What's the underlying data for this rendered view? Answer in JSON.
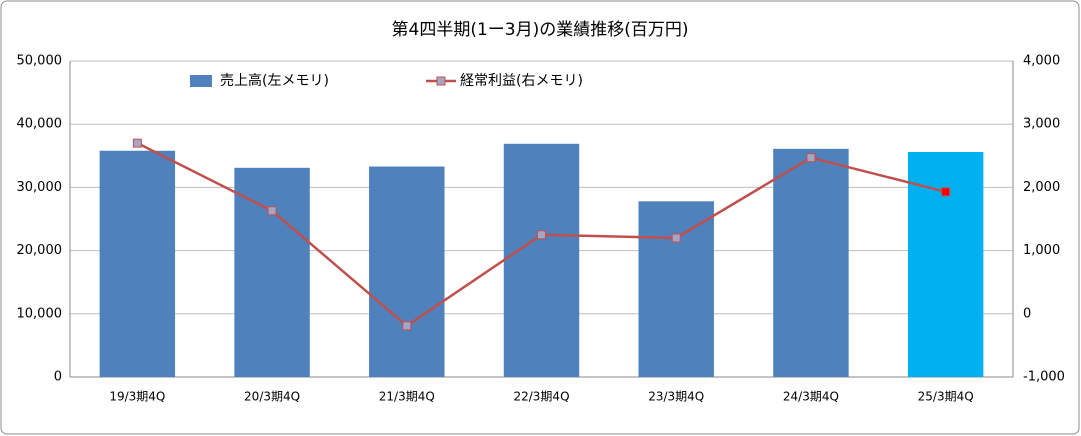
{
  "chart_data": {
    "type": "bar-line",
    "title": "第4四半期(1ー3月)の業績推移(百万円)",
    "categories": [
      "19/3期4Q",
      "20/3期4Q",
      "21/3期4Q",
      "22/3期4Q",
      "23/3期4Q",
      "24/3期4Q",
      "25/3期4Q"
    ],
    "series": [
      {
        "name": "売上高(左メモリ)",
        "type": "bar",
        "color": "#4f81bd",
        "colors": [
          "#4f81bd",
          "#4f81bd",
          "#4f81bd",
          "#4f81bd",
          "#4f81bd",
          "#4f81bd",
          "#00b0f0"
        ],
        "values": [
          35800,
          33100,
          33300,
          36900,
          27800,
          36100,
          35600
        ]
      },
      {
        "name": "経常利益(右メモリ)",
        "type": "line",
        "axis": "y2",
        "color": "#c0504d",
        "marker_color": "#a5a5c8",
        "marker_colors": [
          "#a5a5c8",
          "#a5a5c8",
          "#a5a5c8",
          "#a5a5c8",
          "#a5a5c8",
          "#a5a5c8",
          "#ff0000"
        ],
        "values": [
          2700,
          1630,
          -190,
          1250,
          1200,
          2470,
          1930
        ]
      }
    ],
    "ylim": [
      0,
      50000
    ],
    "yticks": [
      0,
      {
        "value": 10000,
        "label": "10,000"
      },
      {
        "value": 20000,
        "label": "20,000"
      },
      {
        "value": 30000,
        "label": "30,000"
      },
      {
        "value": 40000,
        "label": "40,000"
      },
      {
        "value": 50000,
        "label": "50,000"
      }
    ],
    "y2lim": [
      -1000,
      4000
    ],
    "y2ticks": [
      {
        "value": -1000,
        "label": "-1,000"
      },
      0,
      {
        "value": 1000,
        "label": "1,000"
      },
      {
        "value": 2000,
        "label": "2,000"
      },
      {
        "value": 3000,
        "label": "3,000"
      },
      {
        "value": 4000,
        "label": "4,000"
      }
    ],
    "negative_tick_color": "#ff0000",
    "grid": true,
    "legend": "top"
  }
}
